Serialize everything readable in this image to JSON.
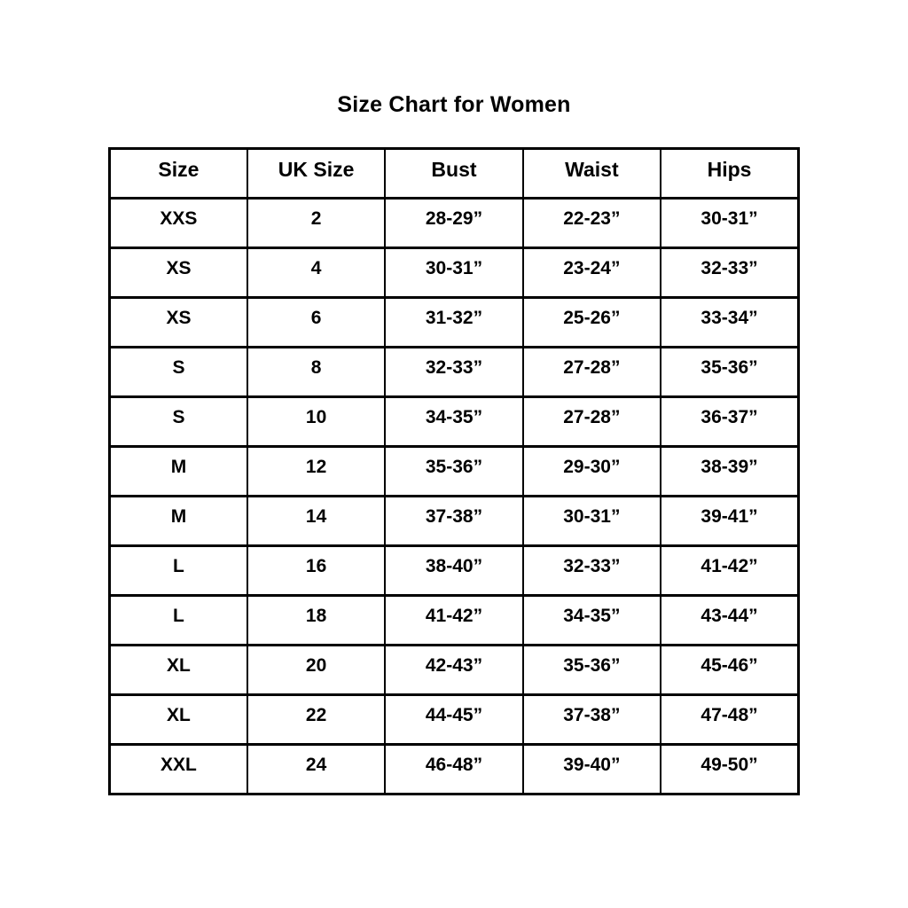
{
  "chart_data": {
    "type": "table",
    "title": "Size Chart for Women",
    "columns": [
      "Size",
      "UK Size",
      "Bust",
      "Waist",
      "Hips"
    ],
    "rows": [
      [
        "XXS",
        "2",
        "28-29”",
        "22-23”",
        "30-31”"
      ],
      [
        "XS",
        "4",
        "30-31”",
        "23-24”",
        "32-33”"
      ],
      [
        "XS",
        "6",
        "31-32”",
        "25-26”",
        "33-34”"
      ],
      [
        "S",
        "8",
        "32-33”",
        "27-28”",
        "35-36”"
      ],
      [
        "S",
        "10",
        "34-35”",
        "27-28”",
        "36-37”"
      ],
      [
        "M",
        "12",
        "35-36”",
        "29-30”",
        "38-39”"
      ],
      [
        "M",
        "14",
        "37-38”",
        "30-31”",
        "39-41”"
      ],
      [
        "L",
        "16",
        "38-40”",
        "32-33”",
        "41-42”"
      ],
      [
        "L",
        "18",
        "41-42”",
        "34-35”",
        "43-44”"
      ],
      [
        "XL",
        "20",
        "42-43”",
        "35-36”",
        "45-46”"
      ],
      [
        "XL",
        "22",
        "44-45”",
        "37-38”",
        "47-48”"
      ],
      [
        "XXL",
        "24",
        "46-48”",
        "39-40”",
        "49-50”"
      ]
    ]
  },
  "colors": {
    "text": "#000000",
    "background": "#ffffff",
    "border": "#000000"
  }
}
